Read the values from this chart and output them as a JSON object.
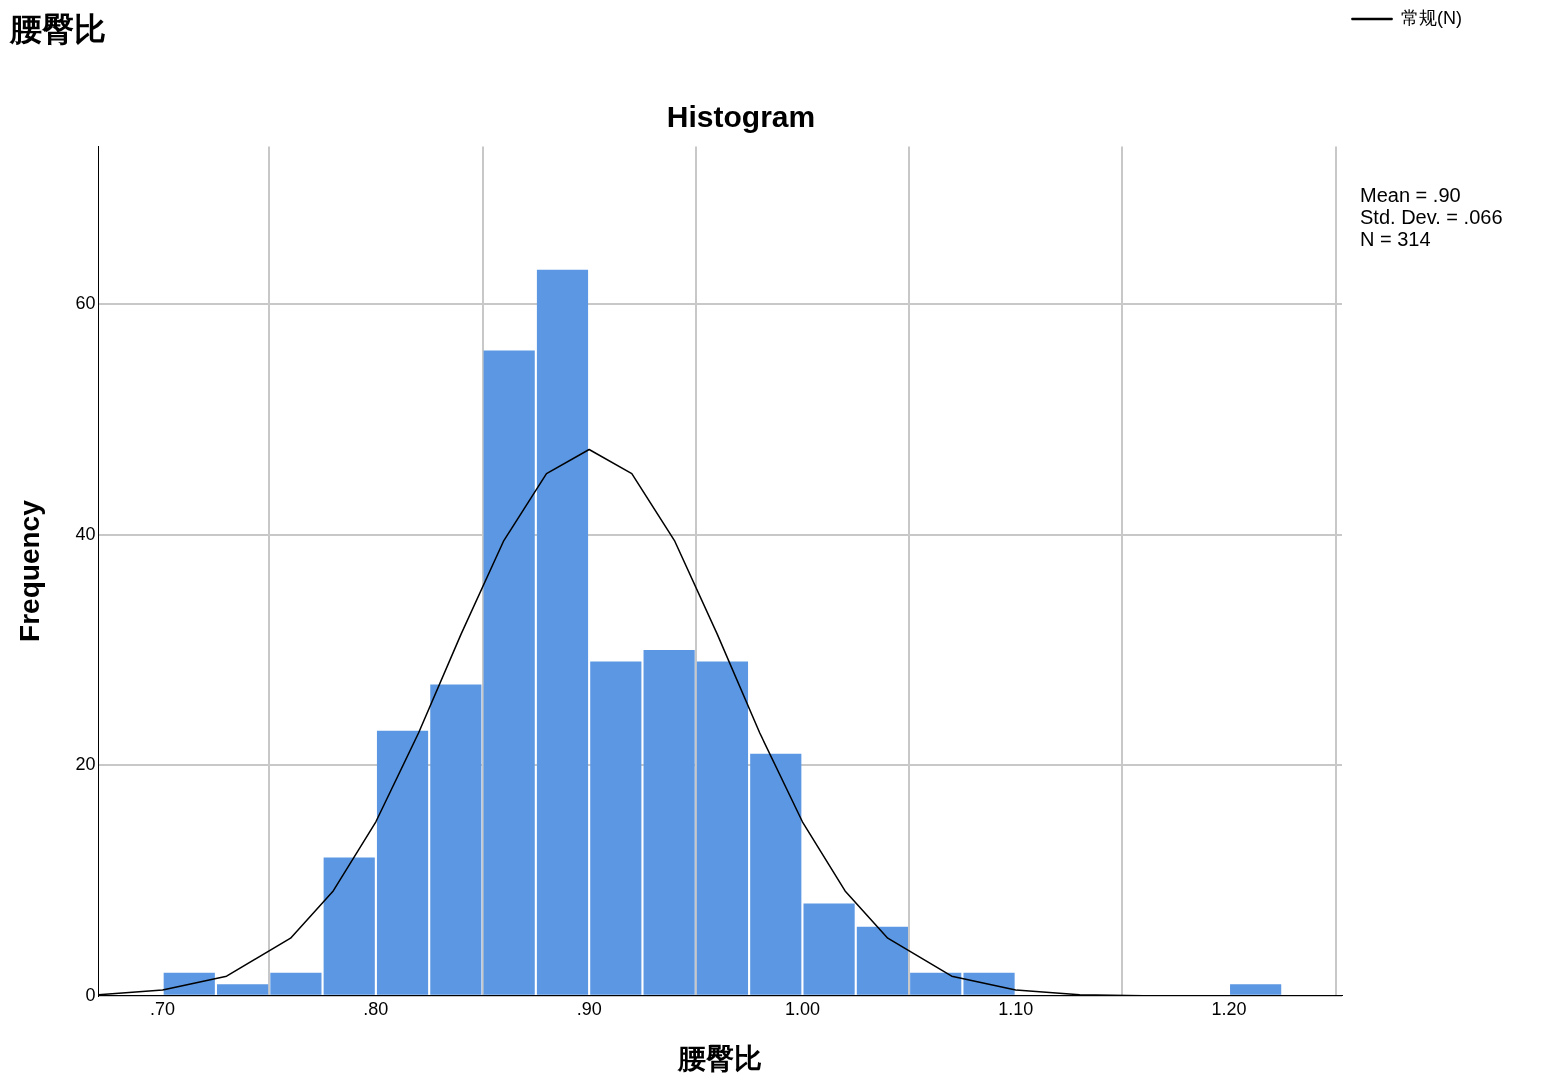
{
  "chart_data": {
    "type": "histogram",
    "title": "腰臀比",
    "subtitle": "Histogram",
    "xlabel": "腰臀比",
    "ylabel": "Frequency",
    "bins": [
      0.7,
      0.725,
      0.75,
      0.775,
      0.8,
      0.825,
      0.85,
      0.875,
      0.9,
      0.925,
      0.95,
      0.975,
      1.0,
      1.025,
      1.05,
      1.075,
      1.1,
      1.125,
      1.15,
      1.175,
      1.2,
      1.225
    ],
    "values": [
      2,
      1,
      2,
      12,
      23,
      27,
      56,
      63,
      29,
      30,
      29,
      21,
      8,
      6,
      2,
      2,
      0,
      0,
      0,
      0,
      1
    ],
    "color": "#5b97e3",
    "series": [
      {
        "type": "line",
        "name": "常规(N)",
        "color": "#000000",
        "x": [
          0.67,
          0.7,
          0.73,
          0.76,
          0.78,
          0.8,
          0.82,
          0.84,
          0.86,
          0.88,
          0.9,
          0.92,
          0.94,
          0.96,
          0.98,
          1.0,
          1.02,
          1.04,
          1.07,
          1.1,
          1.13,
          1.16,
          1.253
        ],
        "values": [
          0.1,
          0.5,
          1.7,
          5.0,
          9.1,
          15.1,
          22.8,
          31.4,
          39.5,
          45.3,
          47.4,
          45.3,
          39.5,
          31.4,
          22.8,
          15.1,
          9.1,
          5.0,
          1.7,
          0.5,
          0.1,
          0,
          0
        ]
      }
    ],
    "xlim": [
      0.67,
      1.253
    ],
    "ylim": [
      0,
      73.7
    ],
    "xticks": [
      {
        "value": 0.7,
        "label": ".70"
      },
      {
        "value": 0.8,
        "label": ".80"
      },
      {
        "value": 0.9,
        "label": ".90"
      },
      {
        "value": 1.0,
        "label": "1.00"
      },
      {
        "value": 1.1,
        "label": "1.10"
      },
      {
        "value": 1.2,
        "label": "1.20"
      }
    ],
    "yticks": [
      0,
      20,
      40,
      60
    ],
    "grid": true,
    "legend": "top right",
    "annotations": [
      "Mean = .90",
      "Std. Dev. = .066",
      "N = 314"
    ]
  }
}
